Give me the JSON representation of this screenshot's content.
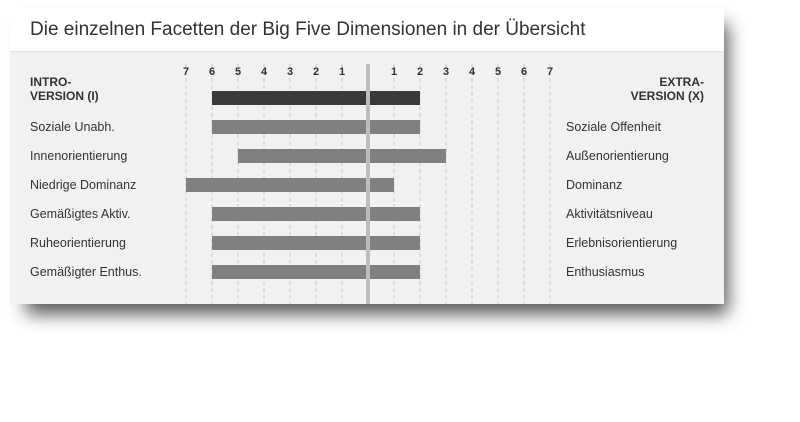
{
  "title": "Die einzelnen Facetten der Big Five Dimensionen in der Übersicht",
  "chart_data": {
    "type": "bar",
    "orientation": "horizontal-diverging",
    "title": "Die einzelnen Facetten der Big Five Dimensionen in der Übersicht",
    "left_header": [
      "INTRO-",
      "VERSION (I)"
    ],
    "right_header": [
      "EXTRA-",
      "VERSION (X)"
    ],
    "tick_labels_left": [
      "7",
      "6",
      "5",
      "4",
      "3",
      "2",
      "1"
    ],
    "tick_labels_right": [
      "1",
      "2",
      "3",
      "4",
      "5",
      "6",
      "7"
    ],
    "range": [
      -7,
      7
    ],
    "grid": true,
    "colors": {
      "summary": "#3a3a3a",
      "facet": "#808080",
      "center": "#bdbdbd"
    },
    "rows": [
      {
        "left": "",
        "right": "",
        "intro": 6,
        "extra": 2,
        "summary": true
      },
      {
        "left": "Soziale Unabh.",
        "right": "Soziale Offenheit",
        "intro": 6,
        "extra": 2
      },
      {
        "left": "Innenorientierung",
        "right": "Außenorientierung",
        "intro": 5,
        "extra": 3
      },
      {
        "left": "Niedrige Dominanz",
        "right": "Dominanz",
        "intro": 7,
        "extra": 1
      },
      {
        "left": "Gemäßigtes Aktiv.",
        "right": "Aktivitätsniveau",
        "intro": 6,
        "extra": 2
      },
      {
        "left": "Ruheorientierung",
        "right": "Erlebnisorientierung",
        "intro": 6,
        "extra": 2
      },
      {
        "left": "Gemäßigter Enthus.",
        "right": "Enthusiasmus",
        "intro": 6,
        "extra": 2
      }
    ]
  }
}
